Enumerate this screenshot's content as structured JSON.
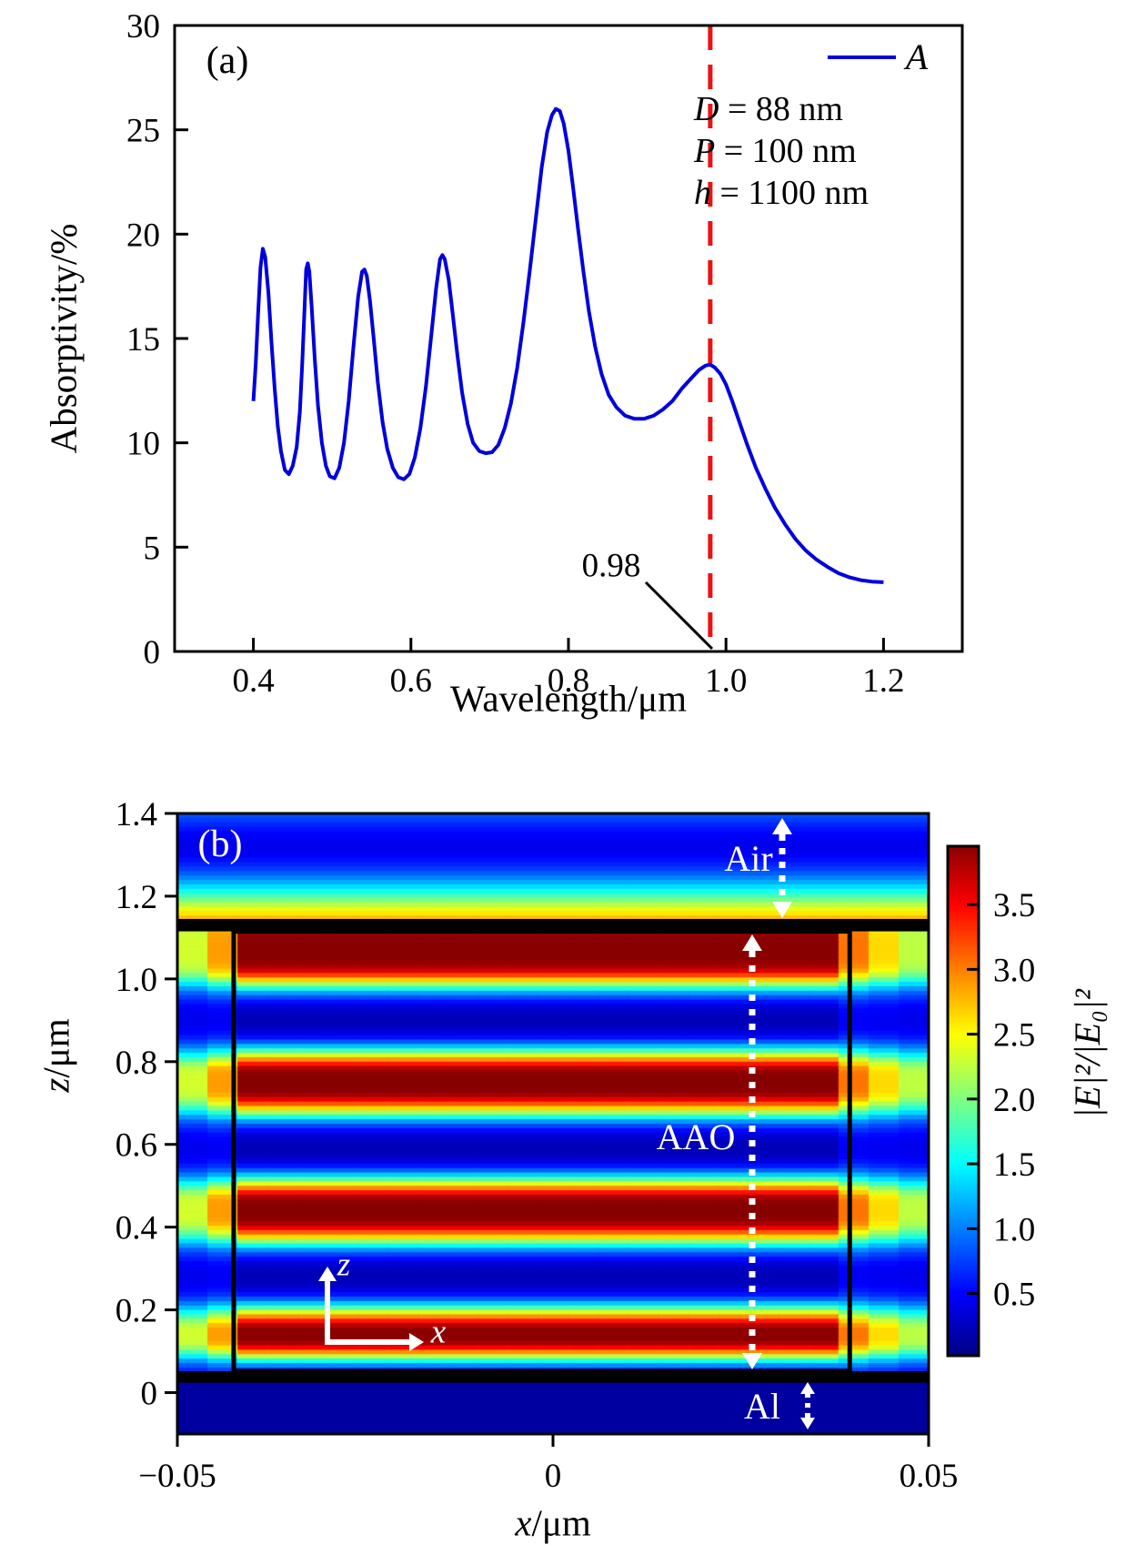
{
  "page": {
    "background": "#ffffff"
  },
  "panel_a": {
    "tag": "(a)",
    "ylabel": "Absorptivity/%",
    "xlabel": "Wavelength/μm",
    "legend_label": "A",
    "params": [
      {
        "var": "D",
        "rest": " = 88 nm"
      },
      {
        "var": "P",
        "rest": " = 100 nm"
      },
      {
        "var": "h",
        "rest": " = 1100 nm"
      }
    ],
    "peak_annotation": "0.98",
    "colors": {
      "curve": "#0000dc",
      "vline": "#ee1111",
      "axis": "#000000"
    }
  },
  "panel_b": {
    "tag": "(b)",
    "xlabel_var": "x",
    "xlabel_unit": "/μm",
    "ylabel_var": "z",
    "ylabel_unit": "/μm",
    "region_air": "Air",
    "region_aao": "AAO",
    "region_al": "Al",
    "axis_arrow_z": "z",
    "axis_arrow_x": "x",
    "colorbar_label": "|E|²/|E₀|²"
  },
  "chart_data": [
    {
      "id": "absorption_spectrum",
      "type": "line",
      "panel_tag": "(a)",
      "xlabel": "Wavelength/μm",
      "ylabel": "Absorptivity/%",
      "xlim": [
        0.3,
        1.3
      ],
      "ylim": [
        0,
        30
      ],
      "xtick_vals": [
        0.4,
        0.6,
        0.8,
        1.0,
        1.2
      ],
      "xtick_labels": [
        "0.4",
        "0.6",
        "0.8",
        "1.0",
        "1.2"
      ],
      "ytick_vals": [
        0,
        5,
        10,
        15,
        20,
        25,
        30
      ],
      "ytick_labels": [
        "0",
        "5",
        "10",
        "15",
        "20",
        "25",
        "30"
      ],
      "grid": false,
      "legend": {
        "position": "top-right",
        "entries": [
          {
            "label": "A",
            "color": "#0000dc"
          }
        ]
      },
      "vline": {
        "x": 0.98,
        "color": "#ee1111",
        "style": "dashed",
        "label": "0.98"
      },
      "annotations": [
        "D = 88 nm",
        "P = 100 nm",
        "h = 1100 nm"
      ],
      "series": [
        {
          "name": "A",
          "color": "#0000dc",
          "points": [
            [
              0.4,
              12.0
            ],
            [
              0.403,
              13.8
            ],
            [
              0.406,
              16.2
            ],
            [
              0.409,
              18.4
            ],
            [
              0.412,
              19.3
            ],
            [
              0.415,
              18.9
            ],
            [
              0.419,
              17.2
            ],
            [
              0.423,
              14.8
            ],
            [
              0.427,
              12.6
            ],
            [
              0.431,
              10.8
            ],
            [
              0.435,
              9.6
            ],
            [
              0.44,
              8.7
            ],
            [
              0.445,
              8.5
            ],
            [
              0.45,
              8.9
            ],
            [
              0.455,
              9.8
            ],
            [
              0.459,
              11.5
            ],
            [
              0.462,
              13.8
            ],
            [
              0.465,
              16.5
            ],
            [
              0.467,
              18.3
            ],
            [
              0.469,
              18.6
            ],
            [
              0.471,
              18.2
            ],
            [
              0.474,
              16.5
            ],
            [
              0.478,
              14.0
            ],
            [
              0.482,
              11.8
            ],
            [
              0.487,
              10.0
            ],
            [
              0.492,
              8.9
            ],
            [
              0.497,
              8.4
            ],
            [
              0.503,
              8.3
            ],
            [
              0.509,
              8.8
            ],
            [
              0.515,
              10.0
            ],
            [
              0.521,
              12.0
            ],
            [
              0.527,
              14.6
            ],
            [
              0.533,
              17.0
            ],
            [
              0.538,
              18.2
            ],
            [
              0.541,
              18.3
            ],
            [
              0.544,
              18.0
            ],
            [
              0.548,
              16.8
            ],
            [
              0.553,
              14.9
            ],
            [
              0.558,
              12.9
            ],
            [
              0.564,
              11.0
            ],
            [
              0.57,
              9.7
            ],
            [
              0.577,
              8.8
            ],
            [
              0.584,
              8.35
            ],
            [
              0.591,
              8.25
            ],
            [
              0.598,
              8.5
            ],
            [
              0.605,
              9.3
            ],
            [
              0.612,
              10.7
            ],
            [
              0.619,
              12.7
            ],
            [
              0.626,
              15.2
            ],
            [
              0.632,
              17.4
            ],
            [
              0.637,
              18.8
            ],
            [
              0.64,
              19.0
            ],
            [
              0.643,
              18.8
            ],
            [
              0.648,
              17.8
            ],
            [
              0.653,
              16.2
            ],
            [
              0.659,
              14.2
            ],
            [
              0.665,
              12.4
            ],
            [
              0.672,
              10.9
            ],
            [
              0.679,
              10.0
            ],
            [
              0.687,
              9.6
            ],
            [
              0.695,
              9.5
            ],
            [
              0.703,
              9.55
            ],
            [
              0.711,
              9.9
            ],
            [
              0.719,
              10.7
            ],
            [
              0.727,
              11.9
            ],
            [
              0.735,
              13.6
            ],
            [
              0.743,
              15.8
            ],
            [
              0.751,
              18.3
            ],
            [
              0.759,
              20.9
            ],
            [
              0.766,
              23.2
            ],
            [
              0.773,
              24.9
            ],
            [
              0.779,
              25.7
            ],
            [
              0.784,
              26.0
            ],
            [
              0.789,
              25.9
            ],
            [
              0.794,
              25.3
            ],
            [
              0.8,
              24.0
            ],
            [
              0.806,
              22.2
            ],
            [
              0.812,
              20.3
            ],
            [
              0.819,
              18.2
            ],
            [
              0.826,
              16.3
            ],
            [
              0.834,
              14.6
            ],
            [
              0.842,
              13.3
            ],
            [
              0.851,
              12.3
            ],
            [
              0.861,
              11.7
            ],
            [
              0.872,
              11.3
            ],
            [
              0.884,
              11.15
            ],
            [
              0.896,
              11.15
            ],
            [
              0.908,
              11.3
            ],
            [
              0.92,
              11.6
            ],
            [
              0.932,
              12.0
            ],
            [
              0.944,
              12.6
            ],
            [
              0.956,
              13.1
            ],
            [
              0.966,
              13.5
            ],
            [
              0.974,
              13.7
            ],
            [
              0.98,
              13.75
            ],
            [
              0.986,
              13.6
            ],
            [
              0.993,
              13.3
            ],
            [
              1.0,
              12.8
            ],
            [
              1.008,
              12.0
            ],
            [
              1.017,
              11.0
            ],
            [
              1.027,
              9.9
            ],
            [
              1.038,
              8.8
            ],
            [
              1.05,
              7.8
            ],
            [
              1.062,
              6.9
            ],
            [
              1.075,
              6.1
            ],
            [
              1.088,
              5.4
            ],
            [
              1.101,
              4.85
            ],
            [
              1.115,
              4.4
            ],
            [
              1.129,
              4.05
            ],
            [
              1.143,
              3.75
            ],
            [
              1.157,
              3.55
            ],
            [
              1.171,
              3.42
            ],
            [
              1.185,
              3.35
            ],
            [
              1.2,
              3.32
            ]
          ]
        }
      ]
    },
    {
      "id": "field_distribution",
      "type": "heatmap",
      "panel_tag": "(b)",
      "xlabel": "x/μm",
      "ylabel": "z/μm",
      "colorbar_label": "|E|²/|E₀|²",
      "colormap": "jet",
      "clim": [
        0,
        4
      ],
      "xlim": [
        -0.05,
        0.05
      ],
      "zlim": [
        -0.1,
        1.4
      ],
      "xtick_vals": [
        -0.05,
        0,
        0.05
      ],
      "xtick_labels": [
        "−0.05",
        "0",
        "0.05"
      ],
      "ztick_vals": [
        0,
        0.2,
        0.4,
        0.6,
        0.8,
        1.0,
        1.2,
        1.4
      ],
      "ztick_labels": [
        "0",
        "0.2",
        "0.4",
        "0.6",
        "0.8",
        "1.0",
        "1.2",
        "1.4"
      ],
      "colorbar_tick_vals": [
        0.5,
        1.0,
        1.5,
        2.0,
        2.5,
        3.0,
        3.5
      ],
      "colorbar_tick_labels": [
        "0.5",
        "1.0",
        "1.5",
        "2.0",
        "2.5",
        "3.0",
        "3.5"
      ],
      "colorbar_range": [
        0.02,
        3.95
      ],
      "geometry": {
        "air_bottom_z": 1.131,
        "al_top_z": 0.028,
        "interface_line_z": [
          1.115,
          1.145
        ],
        "al_line_z": [
          0.024,
          0.052
        ],
        "pore_left_x": -0.0425,
        "pore_right_x": 0.0395,
        "pore_top_z": 1.115,
        "pore_bottom_z": 0.052
      },
      "al_value": 0.13,
      "wall_model": {
        "base": 0.32,
        "scale": 0.7,
        "edge_drop": 0.38,
        "cap": 3.1
      },
      "standing_wave": {
        "antinode_z": [
          0.14,
          0.44,
          0.75,
          1.06
        ],
        "node_z": [
          0.285,
          0.595,
          0.905
        ]
      },
      "profiles": {
        "air": [
          [
            1.131,
            2.95
          ],
          [
            1.145,
            2.8
          ],
          [
            1.155,
            2.65
          ],
          [
            1.17,
            2.4
          ],
          [
            1.185,
            2.1
          ],
          [
            1.2,
            1.8
          ],
          [
            1.22,
            1.42
          ],
          [
            1.24,
            1.08
          ],
          [
            1.26,
            0.8
          ],
          [
            1.28,
            0.6
          ],
          [
            1.3,
            0.47
          ],
          [
            1.32,
            0.42
          ],
          [
            1.34,
            0.45
          ],
          [
            1.36,
            0.55
          ],
          [
            1.38,
            0.7
          ],
          [
            1.4,
            0.85
          ]
        ],
        "pore": [
          [
            0.028,
            0.42
          ],
          [
            0.045,
            0.52
          ],
          [
            0.06,
            0.8
          ],
          [
            0.075,
            1.45
          ],
          [
            0.09,
            2.4
          ],
          [
            0.103,
            3.25
          ],
          [
            0.115,
            3.78
          ],
          [
            0.128,
            3.95
          ],
          [
            0.152,
            3.95
          ],
          [
            0.166,
            3.72
          ],
          [
            0.18,
            3.15
          ],
          [
            0.195,
            2.35
          ],
          [
            0.21,
            1.55
          ],
          [
            0.225,
            0.92
          ],
          [
            0.24,
            0.5
          ],
          [
            0.255,
            0.3
          ],
          [
            0.27,
            0.23
          ],
          [
            0.285,
            0.22
          ],
          [
            0.3,
            0.26
          ],
          [
            0.315,
            0.38
          ],
          [
            0.33,
            0.64
          ],
          [
            0.345,
            1.08
          ],
          [
            0.36,
            1.75
          ],
          [
            0.375,
            2.55
          ],
          [
            0.39,
            3.25
          ],
          [
            0.402,
            3.72
          ],
          [
            0.414,
            3.92
          ],
          [
            0.428,
            3.97
          ],
          [
            0.46,
            3.97
          ],
          [
            0.476,
            3.78
          ],
          [
            0.49,
            3.2
          ],
          [
            0.505,
            2.4
          ],
          [
            0.52,
            1.6
          ],
          [
            0.535,
            0.95
          ],
          [
            0.55,
            0.52
          ],
          [
            0.565,
            0.3
          ],
          [
            0.58,
            0.23
          ],
          [
            0.595,
            0.22
          ],
          [
            0.61,
            0.26
          ],
          [
            0.625,
            0.38
          ],
          [
            0.64,
            0.64
          ],
          [
            0.655,
            1.08
          ],
          [
            0.67,
            1.75
          ],
          [
            0.685,
            2.55
          ],
          [
            0.7,
            3.25
          ],
          [
            0.712,
            3.72
          ],
          [
            0.724,
            3.92
          ],
          [
            0.738,
            3.97
          ],
          [
            0.77,
            3.97
          ],
          [
            0.786,
            3.78
          ],
          [
            0.8,
            3.2
          ],
          [
            0.815,
            2.4
          ],
          [
            0.83,
            1.6
          ],
          [
            0.845,
            0.95
          ],
          [
            0.86,
            0.52
          ],
          [
            0.875,
            0.3
          ],
          [
            0.89,
            0.23
          ],
          [
            0.905,
            0.22
          ],
          [
            0.92,
            0.26
          ],
          [
            0.935,
            0.38
          ],
          [
            0.95,
            0.64
          ],
          [
            0.965,
            1.08
          ],
          [
            0.98,
            1.75
          ],
          [
            0.995,
            2.55
          ],
          [
            1.008,
            3.2
          ],
          [
            1.02,
            3.65
          ],
          [
            1.032,
            3.88
          ],
          [
            1.048,
            3.96
          ],
          [
            1.09,
            3.97
          ],
          [
            1.11,
            3.92
          ],
          [
            1.131,
            3.85
          ]
        ]
      },
      "labels": [
        {
          "text": "Air",
          "x": 0.026,
          "z": 1.29,
          "color": "#ffffff"
        },
        {
          "text": "AAO",
          "x": 0.019,
          "z": 0.617,
          "color": "#ffffff"
        },
        {
          "text": "Al",
          "x": 0.0275,
          "z": -0.031,
          "color": "#ffffff"
        }
      ]
    }
  ]
}
